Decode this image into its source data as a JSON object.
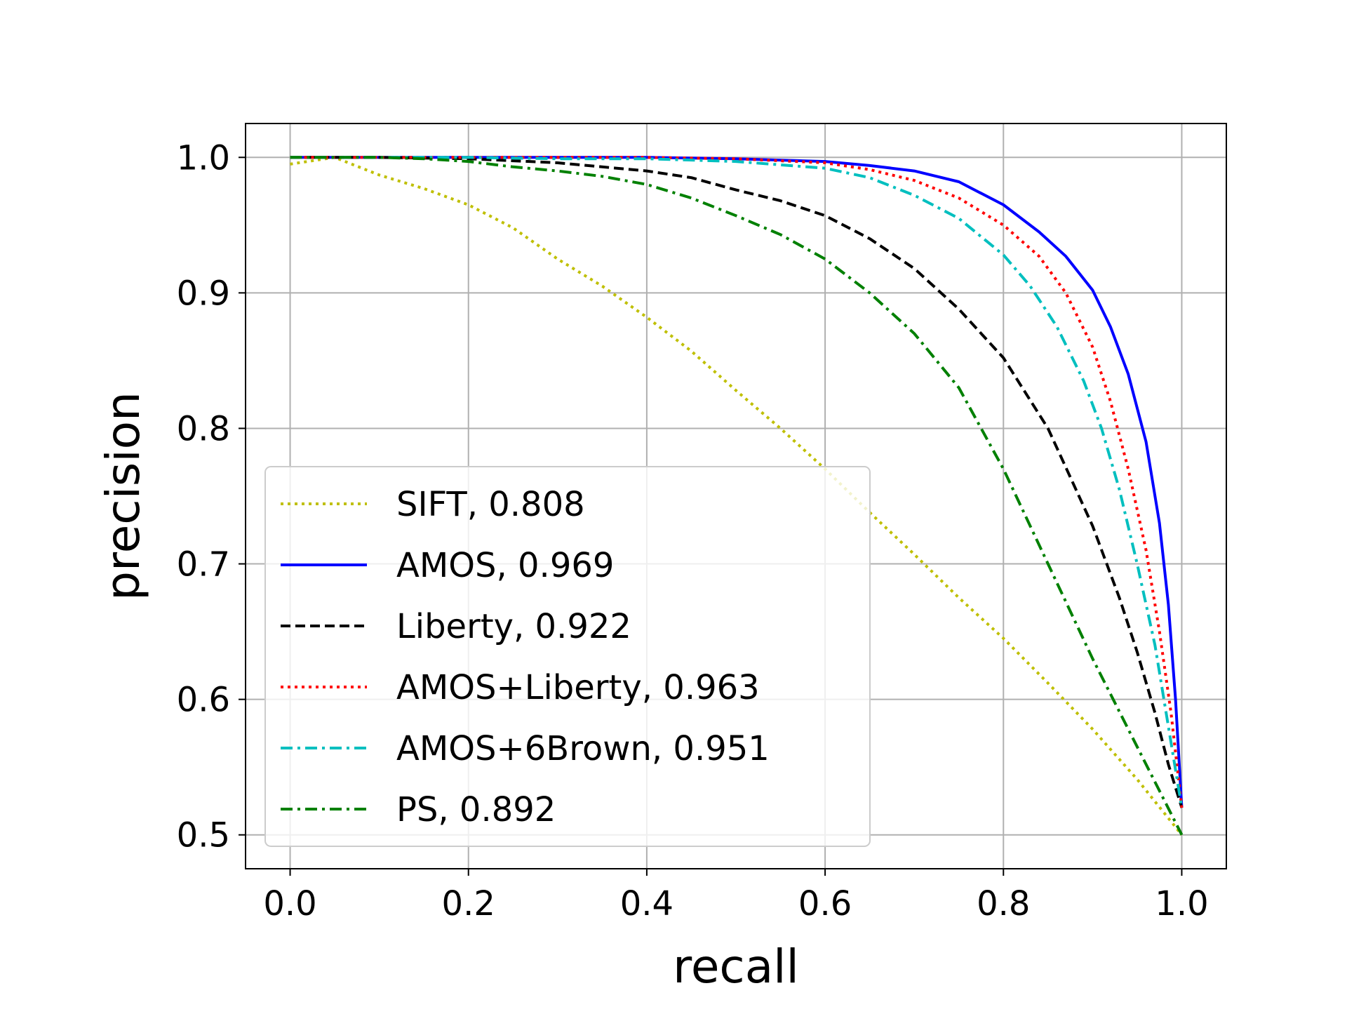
{
  "chart_data": {
    "type": "line",
    "title": "",
    "xlabel": "recall",
    "ylabel": "precision",
    "xlim": [
      -0.05,
      1.05
    ],
    "ylim": [
      0.475,
      1.025
    ],
    "x_ticks": [
      0.0,
      0.2,
      0.4,
      0.6,
      0.8,
      1.0
    ],
    "x_tick_labels": [
      "0.0",
      "0.2",
      "0.4",
      "0.6",
      "0.8",
      "1.0"
    ],
    "y_ticks": [
      0.5,
      0.6,
      0.7,
      0.8,
      0.9,
      1.0
    ],
    "y_tick_labels": [
      "0.5",
      "0.6",
      "0.7",
      "0.8",
      "0.9",
      "1.0"
    ],
    "grid": true,
    "legend_position": "lower-left",
    "series": [
      {
        "name": "SIFT, 0.808",
        "color": "#bfbf00",
        "line_style": "dotted",
        "x": [
          0.0,
          0.05,
          0.1,
          0.15,
          0.2,
          0.25,
          0.3,
          0.35,
          0.4,
          0.45,
          0.5,
          0.55,
          0.6,
          0.65,
          0.7,
          0.75,
          0.8,
          0.85,
          0.9,
          0.95,
          1.0
        ],
        "y": [
          0.995,
          1.0,
          0.987,
          0.977,
          0.965,
          0.948,
          0.925,
          0.905,
          0.882,
          0.857,
          0.828,
          0.8,
          0.77,
          0.738,
          0.707,
          0.675,
          0.645,
          0.612,
          0.578,
          0.541,
          0.5
        ]
      },
      {
        "name": "AMOS, 0.969",
        "color": "#0000ff",
        "line_style": "solid",
        "x": [
          0.0,
          0.1,
          0.2,
          0.3,
          0.4,
          0.5,
          0.6,
          0.65,
          0.7,
          0.75,
          0.8,
          0.84,
          0.87,
          0.9,
          0.92,
          0.94,
          0.96,
          0.975,
          0.985,
          0.993,
          1.0
        ],
        "y": [
          1.0,
          1.0,
          1.0,
          1.0,
          1.0,
          0.999,
          0.997,
          0.994,
          0.99,
          0.982,
          0.965,
          0.945,
          0.927,
          0.902,
          0.875,
          0.84,
          0.79,
          0.73,
          0.67,
          0.6,
          0.52
        ]
      },
      {
        "name": "Liberty, 0.922",
        "color": "#000000",
        "line_style": "dashed",
        "x": [
          0.0,
          0.1,
          0.2,
          0.3,
          0.4,
          0.45,
          0.5,
          0.55,
          0.6,
          0.65,
          0.7,
          0.75,
          0.8,
          0.85,
          0.9,
          0.93,
          0.95,
          0.97,
          0.985,
          1.0
        ],
        "y": [
          1.0,
          1.0,
          0.999,
          0.996,
          0.99,
          0.985,
          0.976,
          0.968,
          0.957,
          0.94,
          0.918,
          0.888,
          0.852,
          0.8,
          0.728,
          0.675,
          0.635,
          0.59,
          0.552,
          0.52
        ]
      },
      {
        "name": "AMOS+Liberty, 0.963",
        "color": "#ff0000",
        "line_style": "dotted",
        "x": [
          0.0,
          0.1,
          0.2,
          0.3,
          0.4,
          0.5,
          0.6,
          0.65,
          0.7,
          0.75,
          0.8,
          0.84,
          0.87,
          0.9,
          0.92,
          0.94,
          0.96,
          0.975,
          0.988,
          1.0
        ],
        "y": [
          1.0,
          1.0,
          1.0,
          1.0,
          1.0,
          0.999,
          0.996,
          0.991,
          0.983,
          0.97,
          0.95,
          0.927,
          0.9,
          0.86,
          0.82,
          0.77,
          0.71,
          0.65,
          0.59,
          0.52
        ]
      },
      {
        "name": "AMOS+6Brown, 0.951",
        "color": "#00bfbf",
        "line_style": "dashdot",
        "x": [
          0.0,
          0.1,
          0.2,
          0.3,
          0.4,
          0.5,
          0.6,
          0.65,
          0.7,
          0.75,
          0.8,
          0.83,
          0.86,
          0.89,
          0.91,
          0.93,
          0.95,
          0.97,
          0.985,
          1.0
        ],
        "y": [
          1.0,
          1.0,
          1.0,
          0.999,
          0.999,
          0.997,
          0.992,
          0.985,
          0.972,
          0.955,
          0.928,
          0.905,
          0.875,
          0.835,
          0.8,
          0.755,
          0.7,
          0.64,
          0.58,
          0.52
        ]
      },
      {
        "name": "PS, 0.892",
        "color": "#008000",
        "line_style": "dashdot",
        "x": [
          0.0,
          0.05,
          0.1,
          0.15,
          0.2,
          0.25,
          0.3,
          0.35,
          0.4,
          0.45,
          0.5,
          0.55,
          0.6,
          0.65,
          0.7,
          0.75,
          0.8,
          0.85,
          0.9,
          0.95,
          1.0
        ],
        "y": [
          1.0,
          1.0,
          1.0,
          0.999,
          0.997,
          0.993,
          0.99,
          0.986,
          0.98,
          0.97,
          0.957,
          0.943,
          0.925,
          0.9,
          0.87,
          0.83,
          0.77,
          0.7,
          0.63,
          0.565,
          0.5
        ]
      }
    ]
  }
}
